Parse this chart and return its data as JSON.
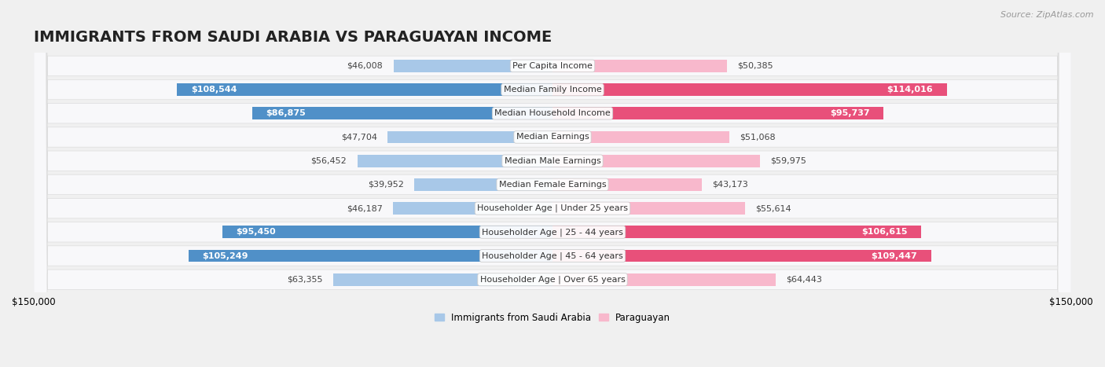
{
  "title": "IMMIGRANTS FROM SAUDI ARABIA VS PARAGUAYAN INCOME",
  "source": "Source: ZipAtlas.com",
  "categories": [
    "Per Capita Income",
    "Median Family Income",
    "Median Household Income",
    "Median Earnings",
    "Median Male Earnings",
    "Median Female Earnings",
    "Householder Age | Under 25 years",
    "Householder Age | 25 - 44 years",
    "Householder Age | 45 - 64 years",
    "Householder Age | Over 65 years"
  ],
  "saudi_values": [
    46008,
    108544,
    86875,
    47704,
    56452,
    39952,
    46187,
    95450,
    105249,
    63355
  ],
  "paraguayan_values": [
    50385,
    114016,
    95737,
    51068,
    59975,
    43173,
    55614,
    106615,
    109447,
    64443
  ],
  "saudi_color_light": "#a8c8e8",
  "saudi_color_dark": "#5090c8",
  "paraguayan_color_light": "#f8b8cc",
  "paraguayan_color_dark": "#e8507a",
  "xlim": 150000,
  "bar_height": 0.52,
  "background_color": "#f0f0f0",
  "row_bg": "#f8f8fa",
  "row_border": "#dddddd",
  "legend_label_saudi": "Immigrants from Saudi Arabia",
  "legend_label_paraguayan": "Paraguayan",
  "title_fontsize": 14,
  "source_fontsize": 8,
  "label_fontsize": 8,
  "category_fontsize": 8,
  "axis_fontsize": 8.5,
  "dark_threshold": 80000
}
